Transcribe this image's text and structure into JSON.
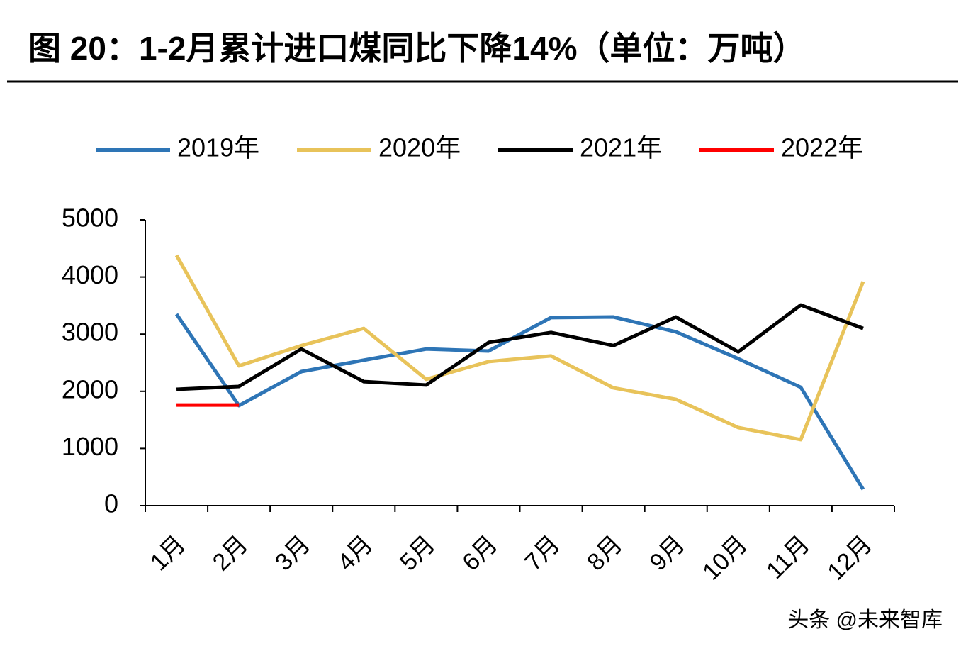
{
  "chart_data": {
    "type": "line",
    "title": "图 20：1-2月累计进口煤同比下降14%（单位：万吨）",
    "categories": [
      "1月",
      "2月",
      "3月",
      "4月",
      "5月",
      "6月",
      "7月",
      "8月",
      "9月",
      "10月",
      "11月",
      "12月"
    ],
    "series": [
      {
        "name": "2019年",
        "color": "#2e75b6",
        "values": [
          3350,
          1750,
          2345,
          2545,
          2740,
          2705,
          3290,
          3300,
          3040,
          2570,
          2070,
          285
        ]
      },
      {
        "name": "2020年",
        "color": "#e8c35a",
        "values": [
          4380,
          2445,
          2800,
          3100,
          2210,
          2520,
          2620,
          2060,
          1860,
          1365,
          1155,
          3920
        ]
      },
      {
        "name": "2021年",
        "color": "#000000",
        "values": [
          2035,
          2085,
          2740,
          2170,
          2110,
          2855,
          3030,
          2800,
          3300,
          2690,
          3510,
          3100
        ]
      },
      {
        "name": "2022年",
        "color": "#ff0000",
        "values": [
          1760,
          1760,
          null,
          null,
          null,
          null,
          null,
          null,
          null,
          null,
          null,
          null
        ]
      }
    ],
    "ylim": [
      0,
      5000
    ],
    "yticks": [
      0,
      1000,
      2000,
      3000,
      4000,
      5000
    ],
    "grid": false,
    "legend": "top",
    "watermark": "头条 @未来智库"
  }
}
